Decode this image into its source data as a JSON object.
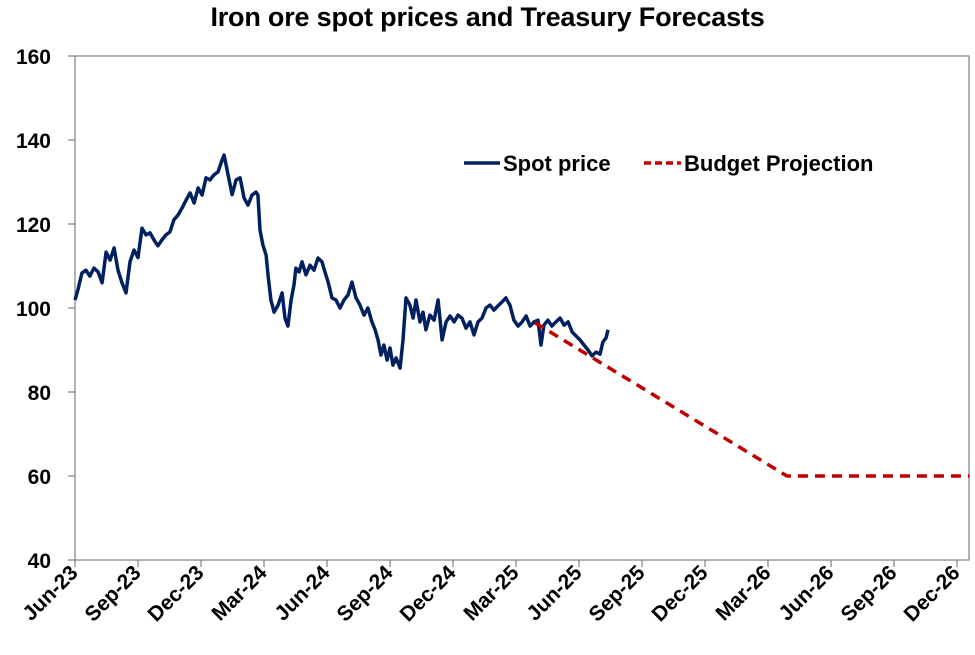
{
  "chart_data": {
    "type": "line",
    "title": "Iron ore spot prices and Treasury Forecasts",
    "xlabel": "",
    "ylabel": "",
    "ylim": [
      40,
      160
    ],
    "yticks": [
      40,
      60,
      80,
      100,
      120,
      140,
      160
    ],
    "x_unit": "months since Jun-23",
    "xlim": [
      0,
      43
    ],
    "xticks": [
      {
        "label": "Jun-23",
        "month": 0
      },
      {
        "label": "Sep-23",
        "month": 3
      },
      {
        "label": "Dec-23",
        "month": 6
      },
      {
        "label": "Mar-24",
        "month": 9
      },
      {
        "label": "Jun-24",
        "month": 12
      },
      {
        "label": "Sep-24",
        "month": 15
      },
      {
        "label": "Dec-24",
        "month": 18
      },
      {
        "label": "Mar-25",
        "month": 21
      },
      {
        "label": "Jun-25",
        "month": 24
      },
      {
        "label": "Sep-25",
        "month": 27
      },
      {
        "label": "Dec-25",
        "month": 30
      },
      {
        "label": "Mar-26",
        "month": 33
      },
      {
        "label": "Jun-26",
        "month": 36
      },
      {
        "label": "Sep-26",
        "month": 39
      },
      {
        "label": "Dec-26",
        "month": 42
      }
    ],
    "grid": false,
    "legend_position": "top-right",
    "series": [
      {
        "name": "Spot price",
        "color": "#002060",
        "style": "solid",
        "points": [
          [
            0.0,
            101.9
          ],
          [
            0.14,
            104.3
          ],
          [
            0.33,
            108.3
          ],
          [
            0.52,
            109.0
          ],
          [
            0.71,
            107.6
          ],
          [
            0.9,
            109.5
          ],
          [
            1.1,
            108.6
          ],
          [
            1.29,
            106.0
          ],
          [
            1.48,
            113.3
          ],
          [
            1.67,
            111.4
          ],
          [
            1.86,
            114.3
          ],
          [
            2.05,
            109.0
          ],
          [
            2.24,
            106.0
          ],
          [
            2.43,
            103.6
          ],
          [
            2.62,
            111.0
          ],
          [
            2.81,
            113.8
          ],
          [
            3.0,
            112.0
          ],
          [
            3.19,
            119.0
          ],
          [
            3.38,
            117.4
          ],
          [
            3.57,
            117.9
          ],
          [
            3.76,
            116.2
          ],
          [
            3.95,
            114.8
          ],
          [
            4.14,
            116.2
          ],
          [
            4.33,
            117.4
          ],
          [
            4.52,
            118.1
          ],
          [
            4.71,
            121.0
          ],
          [
            4.9,
            122.1
          ],
          [
            5.1,
            123.8
          ],
          [
            5.29,
            125.7
          ],
          [
            5.48,
            127.4
          ],
          [
            5.67,
            125.0
          ],
          [
            5.86,
            128.6
          ],
          [
            6.05,
            126.9
          ],
          [
            6.24,
            131.0
          ],
          [
            6.43,
            130.5
          ],
          [
            6.62,
            131.7
          ],
          [
            6.81,
            132.4
          ],
          [
            7.0,
            135.2
          ],
          [
            7.1,
            136.4
          ],
          [
            7.29,
            131.7
          ],
          [
            7.48,
            127.0
          ],
          [
            7.67,
            130.5
          ],
          [
            7.86,
            131.0
          ],
          [
            8.05,
            126.2
          ],
          [
            8.24,
            124.5
          ],
          [
            8.43,
            126.9
          ],
          [
            8.62,
            127.6
          ],
          [
            8.71,
            126.9
          ],
          [
            8.81,
            118.6
          ],
          [
            8.95,
            115.0
          ],
          [
            9.1,
            112.6
          ],
          [
            9.19,
            107.9
          ],
          [
            9.33,
            101.9
          ],
          [
            9.48,
            99.0
          ],
          [
            9.67,
            100.7
          ],
          [
            9.86,
            103.6
          ],
          [
            10.0,
            97.6
          ],
          [
            10.14,
            95.7
          ],
          [
            10.29,
            101.9
          ],
          [
            10.43,
            105.5
          ],
          [
            10.52,
            109.5
          ],
          [
            10.67,
            108.6
          ],
          [
            10.81,
            111.0
          ],
          [
            11.0,
            107.9
          ],
          [
            11.19,
            110.2
          ],
          [
            11.38,
            109.0
          ],
          [
            11.57,
            111.9
          ],
          [
            11.76,
            111.0
          ],
          [
            11.9,
            108.6
          ],
          [
            12.05,
            106.2
          ],
          [
            12.24,
            102.4
          ],
          [
            12.43,
            101.9
          ],
          [
            12.62,
            100.0
          ],
          [
            12.81,
            101.9
          ],
          [
            13.0,
            103.1
          ],
          [
            13.19,
            106.2
          ],
          [
            13.38,
            102.4
          ],
          [
            13.57,
            100.7
          ],
          [
            13.76,
            98.3
          ],
          [
            13.95,
            100.0
          ],
          [
            14.14,
            96.7
          ],
          [
            14.29,
            94.8
          ],
          [
            14.43,
            92.4
          ],
          [
            14.57,
            88.8
          ],
          [
            14.71,
            91.2
          ],
          [
            14.86,
            87.6
          ],
          [
            15.0,
            90.5
          ],
          [
            15.14,
            86.4
          ],
          [
            15.29,
            88.1
          ],
          [
            15.48,
            85.7
          ],
          [
            15.62,
            92.4
          ],
          [
            15.76,
            102.4
          ],
          [
            15.95,
            100.7
          ],
          [
            16.1,
            97.6
          ],
          [
            16.24,
            101.9
          ],
          [
            16.43,
            96.7
          ],
          [
            16.57,
            99.0
          ],
          [
            16.71,
            94.8
          ],
          [
            16.9,
            98.3
          ],
          [
            17.1,
            97.1
          ],
          [
            17.29,
            101.9
          ],
          [
            17.48,
            92.4
          ],
          [
            17.67,
            96.7
          ],
          [
            17.86,
            98.1
          ],
          [
            18.05,
            96.7
          ],
          [
            18.24,
            98.3
          ],
          [
            18.43,
            97.6
          ],
          [
            18.62,
            95.2
          ],
          [
            18.81,
            96.7
          ],
          [
            19.0,
            93.6
          ],
          [
            19.19,
            96.7
          ],
          [
            19.38,
            97.6
          ],
          [
            19.57,
            100.0
          ],
          [
            19.76,
            100.7
          ],
          [
            19.95,
            99.5
          ],
          [
            20.14,
            100.5
          ],
          [
            20.33,
            101.4
          ],
          [
            20.52,
            102.4
          ],
          [
            20.71,
            100.7
          ],
          [
            20.9,
            97.1
          ],
          [
            21.1,
            95.7
          ],
          [
            21.29,
            96.7
          ],
          [
            21.48,
            98.1
          ],
          [
            21.67,
            95.7
          ],
          [
            21.86,
            96.7
          ],
          [
            22.05,
            97.1
          ],
          [
            22.19,
            91.2
          ],
          [
            22.33,
            95.9
          ],
          [
            22.52,
            97.1
          ],
          [
            22.71,
            95.7
          ],
          [
            22.9,
            96.7
          ],
          [
            23.1,
            97.6
          ],
          [
            23.29,
            95.9
          ],
          [
            23.48,
            96.7
          ],
          [
            23.67,
            94.3
          ],
          [
            23.86,
            93.3
          ],
          [
            24.05,
            92.4
          ],
          [
            24.24,
            91.2
          ],
          [
            24.43,
            90.0
          ],
          [
            24.62,
            88.6
          ],
          [
            24.81,
            89.5
          ],
          [
            25.0,
            89.0
          ],
          [
            25.14,
            91.9
          ],
          [
            25.29,
            92.9
          ],
          [
            25.38,
            94.8
          ]
        ]
      },
      {
        "name": "Budget Projection",
        "color": "#C00000",
        "style": "dashed",
        "points": [
          [
            21.9,
            96.5
          ],
          [
            33.9,
            60
          ],
          [
            42.6,
            60
          ]
        ]
      }
    ]
  }
}
